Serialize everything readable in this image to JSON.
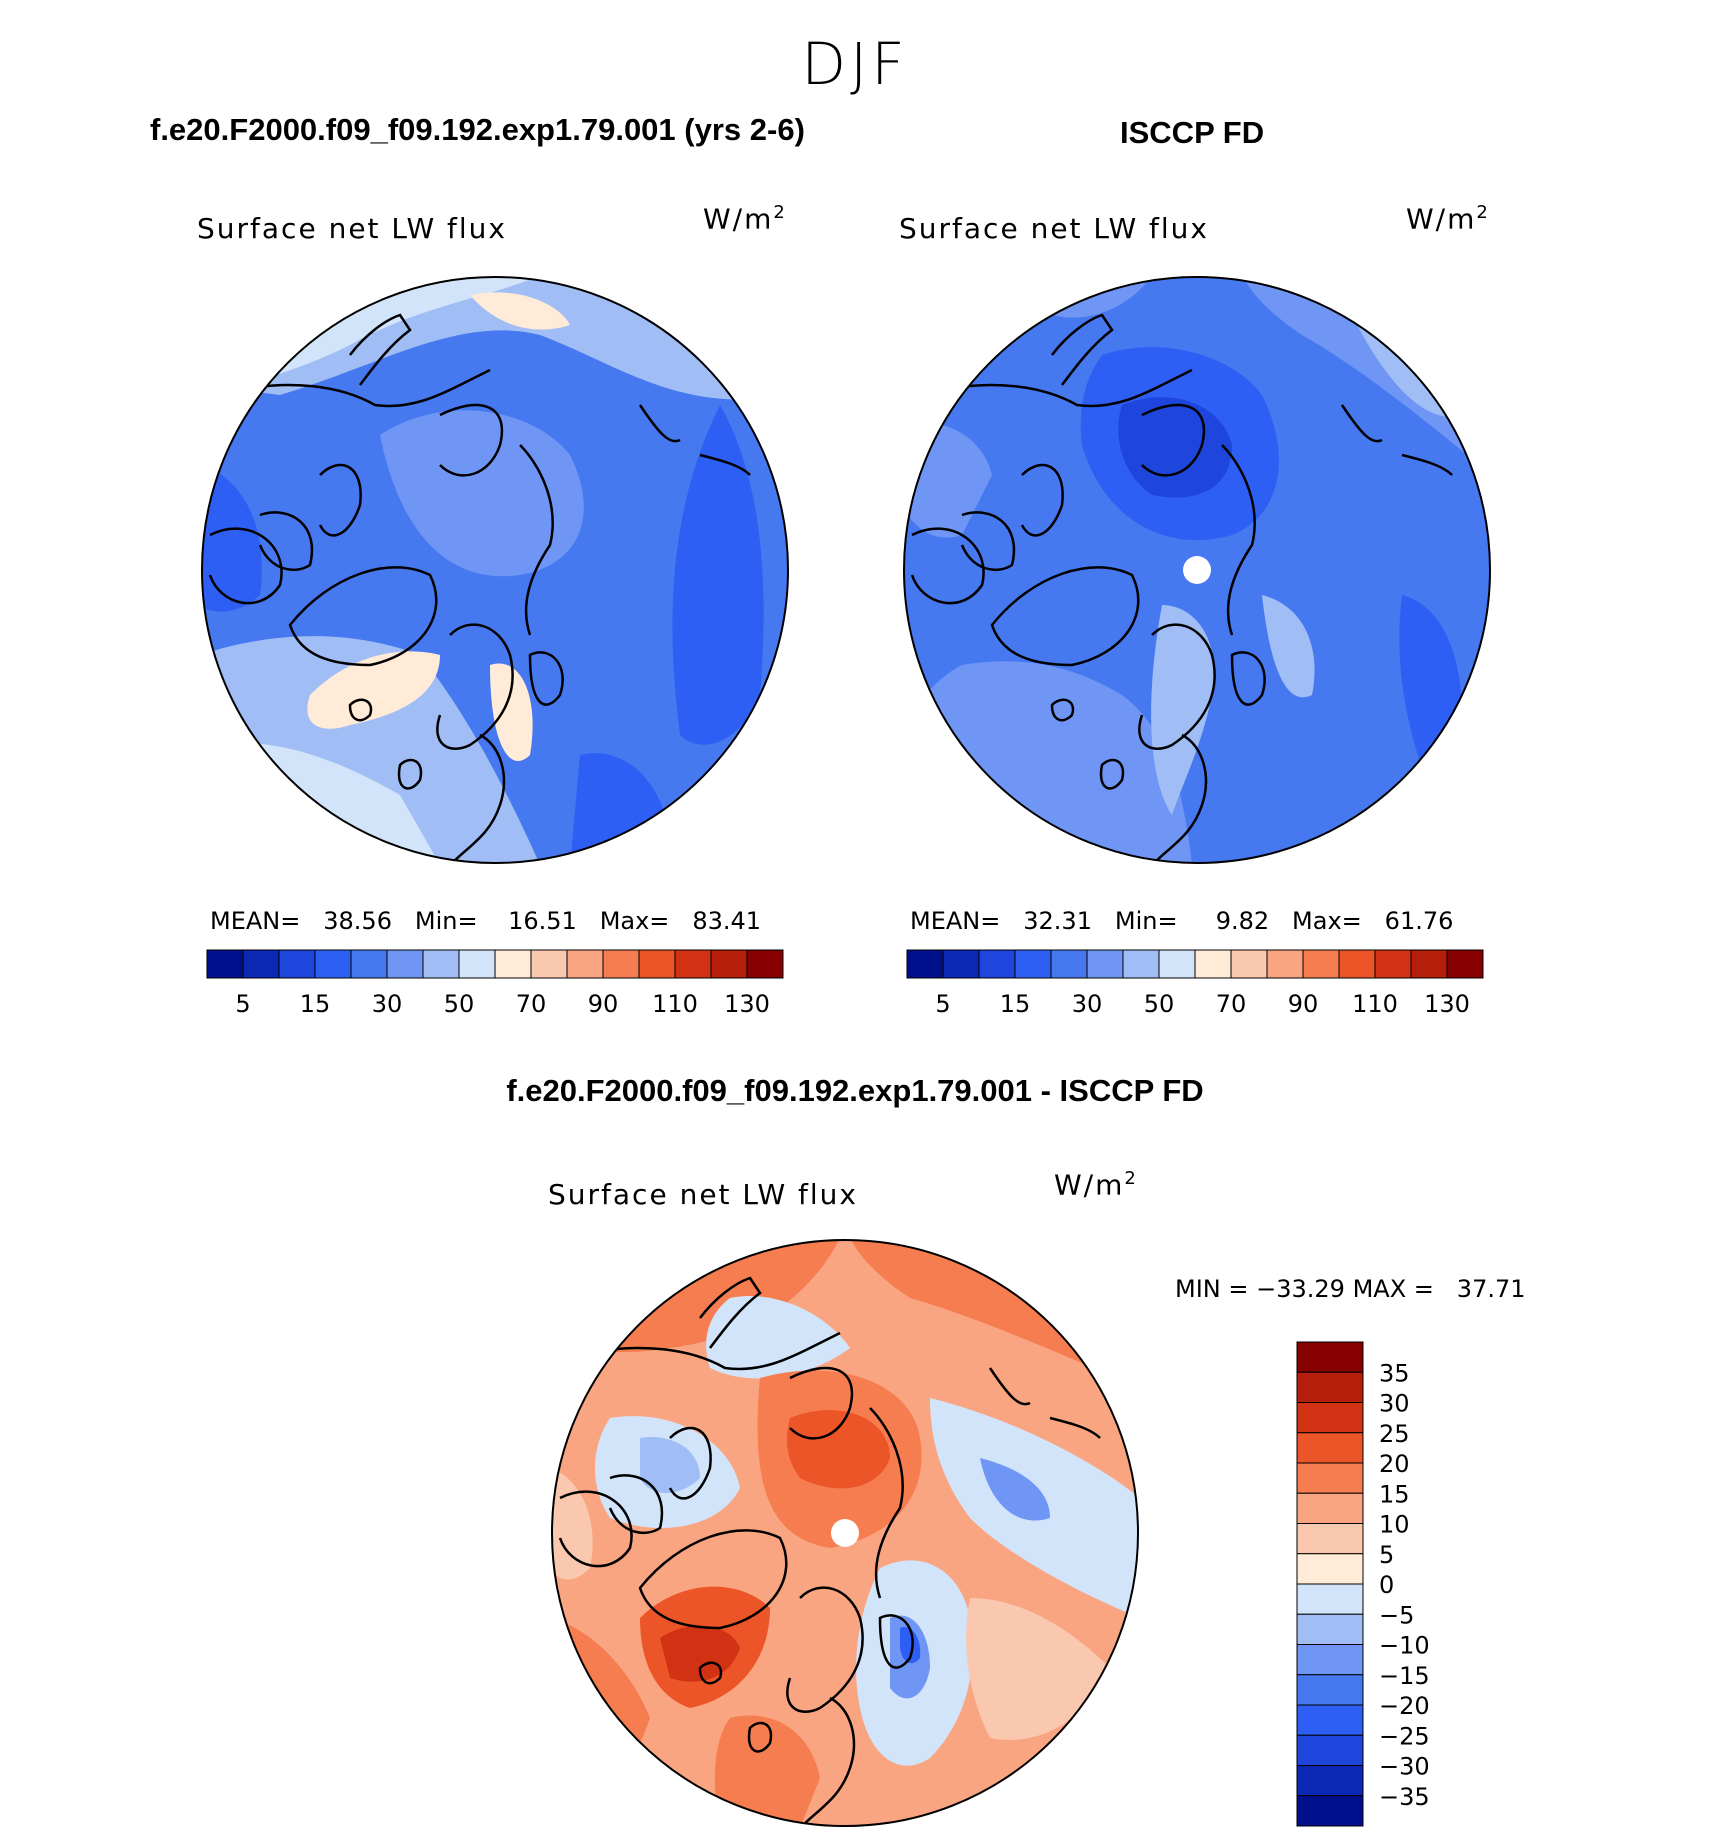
{
  "page": {
    "season": "DJF"
  },
  "panels": {
    "model": {
      "title": "f.e20.F2000.f09_f09.192.exp1.79.001 (yrs 2-6)",
      "variable": "Surface net LW flux",
      "units_base": "W/m",
      "units_exp": "2",
      "stats": {
        "mean_label": "MEAN=",
        "mean": "38.56",
        "min_label": "Min=",
        "min": "16.51",
        "max_label": "Max=",
        "max": "83.41"
      }
    },
    "obs": {
      "title": "ISCCP FD",
      "variable": "Surface net LW flux",
      "units_base": "W/m",
      "units_exp": "2",
      "stats": {
        "mean_label": "MEAN=",
        "mean": "32.31",
        "min_label": "Min=",
        "min": "9.82",
        "max_label": "Max=",
        "max": "61.76"
      }
    },
    "diff": {
      "title": "f.e20.F2000.f09_f09.192.exp1.79.001 - ISCCP FD",
      "variable": "Surface net LW flux",
      "units_base": "W/m",
      "units_exp": "2",
      "stats": {
        "min_label": "MIN =",
        "min": "−33.29",
        "max_label": "MAX =",
        "max": "37.71"
      }
    }
  },
  "chart_data": [
    {
      "type": "heatmap",
      "projection": "north-polar-stereographic",
      "title": "f.e20.F2000.f09_f09.192.exp1.79.001 (yrs 2-6)",
      "variable": "Surface net LW flux",
      "units": "W/m2",
      "colorbar": {
        "orientation": "horizontal",
        "levels": [
          5,
          10,
          15,
          20,
          30,
          40,
          50,
          60,
          70,
          80,
          90,
          100,
          110,
          120,
          130
        ],
        "tick_labels": [
          "5",
          "15",
          "30",
          "50",
          "70",
          "90",
          "110",
          "130"
        ],
        "colors": [
          "#000f8c",
          "#0a28b4",
          "#1e46dc",
          "#2d5ff5",
          "#4678f0",
          "#7096f5",
          "#a0bef5",
          "#d2e4fa",
          "#ffebd7",
          "#fac8af",
          "#faa582",
          "#f57d50",
          "#eb5528",
          "#d23214",
          "#b41e0a",
          "#870000"
        ]
      },
      "mean": 38.56,
      "min": 16.51,
      "max": 83.41
    },
    {
      "type": "heatmap",
      "projection": "north-polar-stereographic",
      "title": "ISCCP FD",
      "variable": "Surface net LW flux",
      "units": "W/m2",
      "colorbar": {
        "orientation": "horizontal",
        "levels": [
          5,
          10,
          15,
          20,
          30,
          40,
          50,
          60,
          70,
          80,
          90,
          100,
          110,
          120,
          130
        ],
        "tick_labels": [
          "5",
          "15",
          "30",
          "50",
          "70",
          "90",
          "110",
          "130"
        ],
        "colors": [
          "#000f8c",
          "#0a28b4",
          "#1e46dc",
          "#2d5ff5",
          "#4678f0",
          "#7096f5",
          "#a0bef5",
          "#d2e4fa",
          "#ffebd7",
          "#fac8af",
          "#faa582",
          "#f57d50",
          "#eb5528",
          "#d23214",
          "#b41e0a",
          "#870000"
        ]
      },
      "mean": 32.31,
      "min": 9.82,
      "max": 61.76
    },
    {
      "type": "heatmap",
      "projection": "north-polar-stereographic",
      "title": "f.e20.F2000.f09_f09.192.exp1.79.001 - ISCCP FD",
      "variable": "Surface net LW flux",
      "units": "W/m2",
      "colorbar": {
        "orientation": "vertical",
        "levels": [
          35,
          30,
          25,
          20,
          15,
          10,
          5,
          0,
          -5,
          -10,
          -15,
          -20,
          -25,
          -30,
          -35
        ],
        "tick_labels": [
          "35",
          "30",
          "25",
          "20",
          "15",
          "10",
          "5",
          "0",
          "−5",
          "−10",
          "−15",
          "−20",
          "−25",
          "−30",
          "−35"
        ],
        "colors": [
          "#870000",
          "#b41e0a",
          "#d23214",
          "#eb5528",
          "#f57d50",
          "#faa582",
          "#fac8af",
          "#ffebd7",
          "#d2e4fa",
          "#a0bef5",
          "#7096f5",
          "#4678f0",
          "#2d5ff5",
          "#1e46dc",
          "#0a28b4",
          "#000f8c"
        ]
      },
      "min": -33.29,
      "max": 37.71
    }
  ]
}
